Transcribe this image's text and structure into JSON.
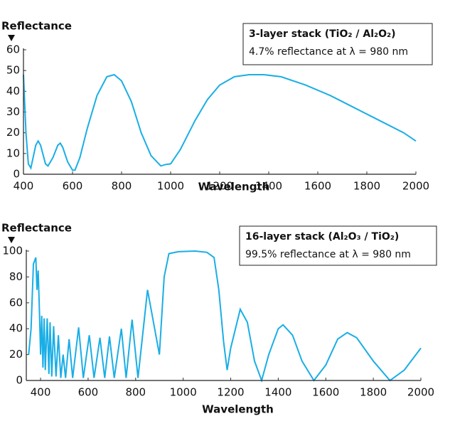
{
  "chart_data": [
    {
      "type": "line",
      "y_label": "Reflectance",
      "x_label": "Wavelength",
      "annotations": [
        "3-layer stack (TiO₂ / Al₂O₂)",
        "4.7% reflectance at λ = 980 nm"
      ],
      "color": "#1aaee6",
      "x": [
        400,
        410,
        420,
        430,
        450,
        460,
        470,
        490,
        500,
        520,
        540,
        550,
        560,
        580,
        600,
        610,
        630,
        660,
        700,
        740,
        770,
        800,
        840,
        880,
        920,
        960,
        980,
        1000,
        1040,
        1100,
        1150,
        1200,
        1260,
        1320,
        1380,
        1450,
        1550,
        1650,
        1750,
        1850,
        1950,
        2000
      ],
      "y": [
        48,
        20,
        5,
        3,
        14,
        16,
        14,
        5,
        4,
        8,
        14,
        15,
        13,
        6,
        2,
        2,
        8,
        22,
        38,
        47,
        48,
        45,
        35,
        20,
        9,
        4,
        4.7,
        5,
        12,
        26,
        36,
        43,
        47,
        48,
        48,
        47,
        43,
        38,
        32,
        26,
        20,
        16
      ],
      "xlim": [
        400,
        2000
      ],
      "ylim": [
        0,
        60
      ],
      "xticks": [
        400,
        600,
        800,
        1000,
        1200,
        1400,
        1600,
        1800,
        2000
      ],
      "yticks": [
        0,
        10,
        20,
        30,
        40,
        50,
        60
      ]
    },
    {
      "type": "line",
      "y_label": "Reflectance",
      "x_label": "Wavelength",
      "annotations": [
        "16-layer stack (Al₂O₃ / TiO₂)",
        "99.5% reflectance at λ = 980 nm"
      ],
      "color": "#1aaee6",
      "x": [
        350,
        360,
        370,
        380,
        385,
        390,
        395,
        400,
        405,
        410,
        415,
        420,
        428,
        435,
        440,
        447,
        455,
        465,
        475,
        485,
        495,
        505,
        520,
        535,
        560,
        580,
        605,
        625,
        650,
        670,
        690,
        710,
        740,
        760,
        785,
        810,
        850,
        870,
        900,
        920,
        940,
        980,
        1050,
        1100,
        1130,
        1150,
        1170,
        1185,
        1200,
        1240,
        1270,
        1300,
        1330,
        1360,
        1400,
        1420,
        1460,
        1500,
        1550,
        1600,
        1650,
        1690,
        1730,
        1800,
        1870,
        1930,
        2000
      ],
      "y": [
        20,
        40,
        90,
        95,
        70,
        85,
        55,
        20,
        50,
        10,
        48,
        8,
        48,
        5,
        45,
        3,
        42,
        3,
        35,
        2,
        20,
        2,
        32,
        2,
        41,
        2,
        35,
        2,
        33,
        2,
        34,
        2,
        40,
        2,
        47,
        2,
        70,
        50,
        20,
        80,
        98,
        99.5,
        100,
        99,
        95,
        70,
        30,
        8,
        25,
        55,
        45,
        15,
        0,
        20,
        40,
        43,
        35,
        15,
        0,
        12,
        32,
        37,
        33,
        15,
        0,
        8,
        25
      ],
      "xlim": [
        340,
        2000
      ],
      "ylim": [
        0,
        100
      ],
      "xticks": [
        400,
        600,
        800,
        1000,
        1200,
        1400,
        1600,
        1800,
        2000
      ],
      "yticks": [
        0,
        20,
        40,
        60,
        80,
        100
      ]
    }
  ]
}
